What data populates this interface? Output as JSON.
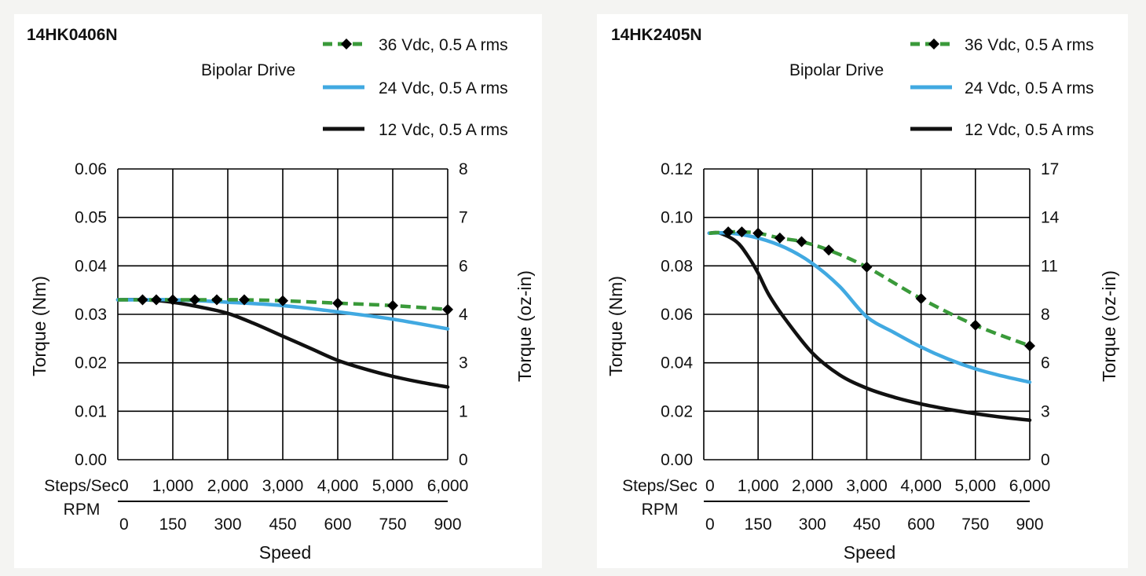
{
  "chart_data": [
    {
      "type": "line",
      "title": "14HK0406N",
      "subtitle": "Bipolar Drive",
      "ylabel": "Torque (Nm)",
      "y2label": "Torque (oz-in)",
      "xlabel": "Speed",
      "x_row1_label": "Steps/Sec",
      "x_row2_label": "RPM",
      "xlim": [
        0,
        6000
      ],
      "ylim": [
        0,
        0.06
      ],
      "x_ticks": [
        "0",
        "1,000",
        "2,000",
        "3,000",
        "4,000",
        "5,000",
        "6,000"
      ],
      "x_tick_values": [
        0,
        1000,
        2000,
        3000,
        4000,
        5000,
        6000
      ],
      "rpm_ticks": [
        "0",
        "150",
        "300",
        "450",
        "600",
        "750",
        "900"
      ],
      "y_ticks": [
        "0.00",
        "0.01",
        "0.02",
        "0.03",
        "0.04",
        "0.05",
        "0.06"
      ],
      "y_tick_values": [
        0,
        0.01,
        0.02,
        0.03,
        0.04,
        0.05,
        0.06
      ],
      "y2_ticks": [
        "0",
        "1",
        "3",
        "4",
        "6",
        "7",
        "8"
      ],
      "grid": true,
      "legend": "top-right",
      "series": [
        {
          "name": "36 Vdc, 0.5 A rms",
          "style": "dashed-diamond",
          "color": "#3a9a3a",
          "x": [
            0,
            200,
            450,
            700,
            1000,
            1400,
            1800,
            2300,
            3000,
            4000,
            5000,
            6000
          ],
          "y": [
            0.033,
            0.033,
            0.033,
            0.033,
            0.033,
            0.033,
            0.033,
            0.033,
            0.0328,
            0.0323,
            0.0318,
            0.031
          ],
          "markers_x": [
            450,
            700,
            1000,
            1400,
            1800,
            2300,
            3000,
            4000,
            5000,
            6000
          ],
          "markers_y": [
            0.033,
            0.033,
            0.033,
            0.033,
            0.033,
            0.033,
            0.0328,
            0.0323,
            0.0318,
            0.031
          ]
        },
        {
          "name": "24 Vdc, 0.5 A rms",
          "style": "solid",
          "color": "#41a9e1",
          "x": [
            0,
            500,
            1000,
            2000,
            3000,
            4000,
            5000,
            6000
          ],
          "y": [
            0.033,
            0.033,
            0.033,
            0.0325,
            0.0318,
            0.0305,
            0.029,
            0.027
          ]
        },
        {
          "name": "12 Vdc, 0.5 A rms",
          "style": "solid",
          "color": "#111111",
          "x": [
            0,
            500,
            1000,
            1500,
            2000,
            2500,
            3000,
            3500,
            4000,
            4500,
            5000,
            5500,
            6000
          ],
          "y": [
            0.033,
            0.033,
            0.0325,
            0.0315,
            0.0302,
            0.028,
            0.0255,
            0.023,
            0.0205,
            0.0187,
            0.0172,
            0.016,
            0.015
          ]
        }
      ]
    },
    {
      "type": "line",
      "title": "14HK2405N",
      "subtitle": "Bipolar Drive",
      "ylabel": "Torque (Nm)",
      "y2label": "Torque (oz-in)",
      "xlabel": "Speed",
      "x_row1_label": "Steps/Sec",
      "x_row2_label": "RPM",
      "xlim": [
        0,
        6000
      ],
      "ylim": [
        0,
        0.12
      ],
      "x_ticks": [
        "0",
        "1,000",
        "2,000",
        "3,000",
        "4,000",
        "5,000",
        "6,000"
      ],
      "x_tick_values": [
        0,
        1000,
        2000,
        3000,
        4000,
        5000,
        6000
      ],
      "rpm_ticks": [
        "0",
        "150",
        "300",
        "450",
        "600",
        "750",
        "900"
      ],
      "y_ticks": [
        "0.00",
        "0.02",
        "0.04",
        "0.06",
        "0.08",
        "0.10",
        "0.12"
      ],
      "y_tick_values": [
        0,
        0.02,
        0.04,
        0.06,
        0.08,
        0.1,
        0.12
      ],
      "y2_ticks": [
        "0",
        "3",
        "6",
        "8",
        "11",
        "14",
        "17"
      ],
      "grid": true,
      "legend": "top-right",
      "series": [
        {
          "name": "36 Vdc, 0.5 A rms",
          "style": "dashed-diamond",
          "color": "#3a9a3a",
          "x": [
            100,
            450,
            700,
            1000,
            1400,
            1800,
            2300,
            3000,
            4000,
            5000,
            6000
          ],
          "y": [
            0.0935,
            0.094,
            0.094,
            0.0935,
            0.0915,
            0.09,
            0.0865,
            0.0795,
            0.0665,
            0.0555,
            0.047
          ],
          "markers_x": [
            450,
            700,
            1000,
            1400,
            1800,
            2300,
            3000,
            4000,
            5000,
            6000
          ],
          "markers_y": [
            0.094,
            0.094,
            0.0935,
            0.0915,
            0.09,
            0.0865,
            0.0795,
            0.0665,
            0.0555,
            0.047
          ]
        },
        {
          "name": "24 Vdc, 0.5 A rms",
          "style": "solid",
          "color": "#41a9e1",
          "x": [
            100,
            500,
            1000,
            1500,
            2000,
            2500,
            3000,
            3500,
            4000,
            4500,
            5000,
            5500,
            6000
          ],
          "y": [
            0.0935,
            0.0935,
            0.0915,
            0.0875,
            0.081,
            0.0715,
            0.059,
            0.0525,
            0.0465,
            0.0415,
            0.0375,
            0.0345,
            0.032
          ]
        },
        {
          "name": "12 Vdc, 0.5 A rms",
          "style": "solid",
          "color": "#111111",
          "x": [
            100,
            300,
            600,
            800,
            1000,
            1200,
            1500,
            2000,
            2500,
            3000,
            3500,
            4000,
            4500,
            5000,
            5500,
            6000
          ],
          "y": [
            0.0935,
            0.0935,
            0.09,
            0.0845,
            0.077,
            0.068,
            0.058,
            0.044,
            0.035,
            0.0295,
            0.0258,
            0.023,
            0.0208,
            0.019,
            0.0175,
            0.0163
          ]
        }
      ]
    }
  ]
}
